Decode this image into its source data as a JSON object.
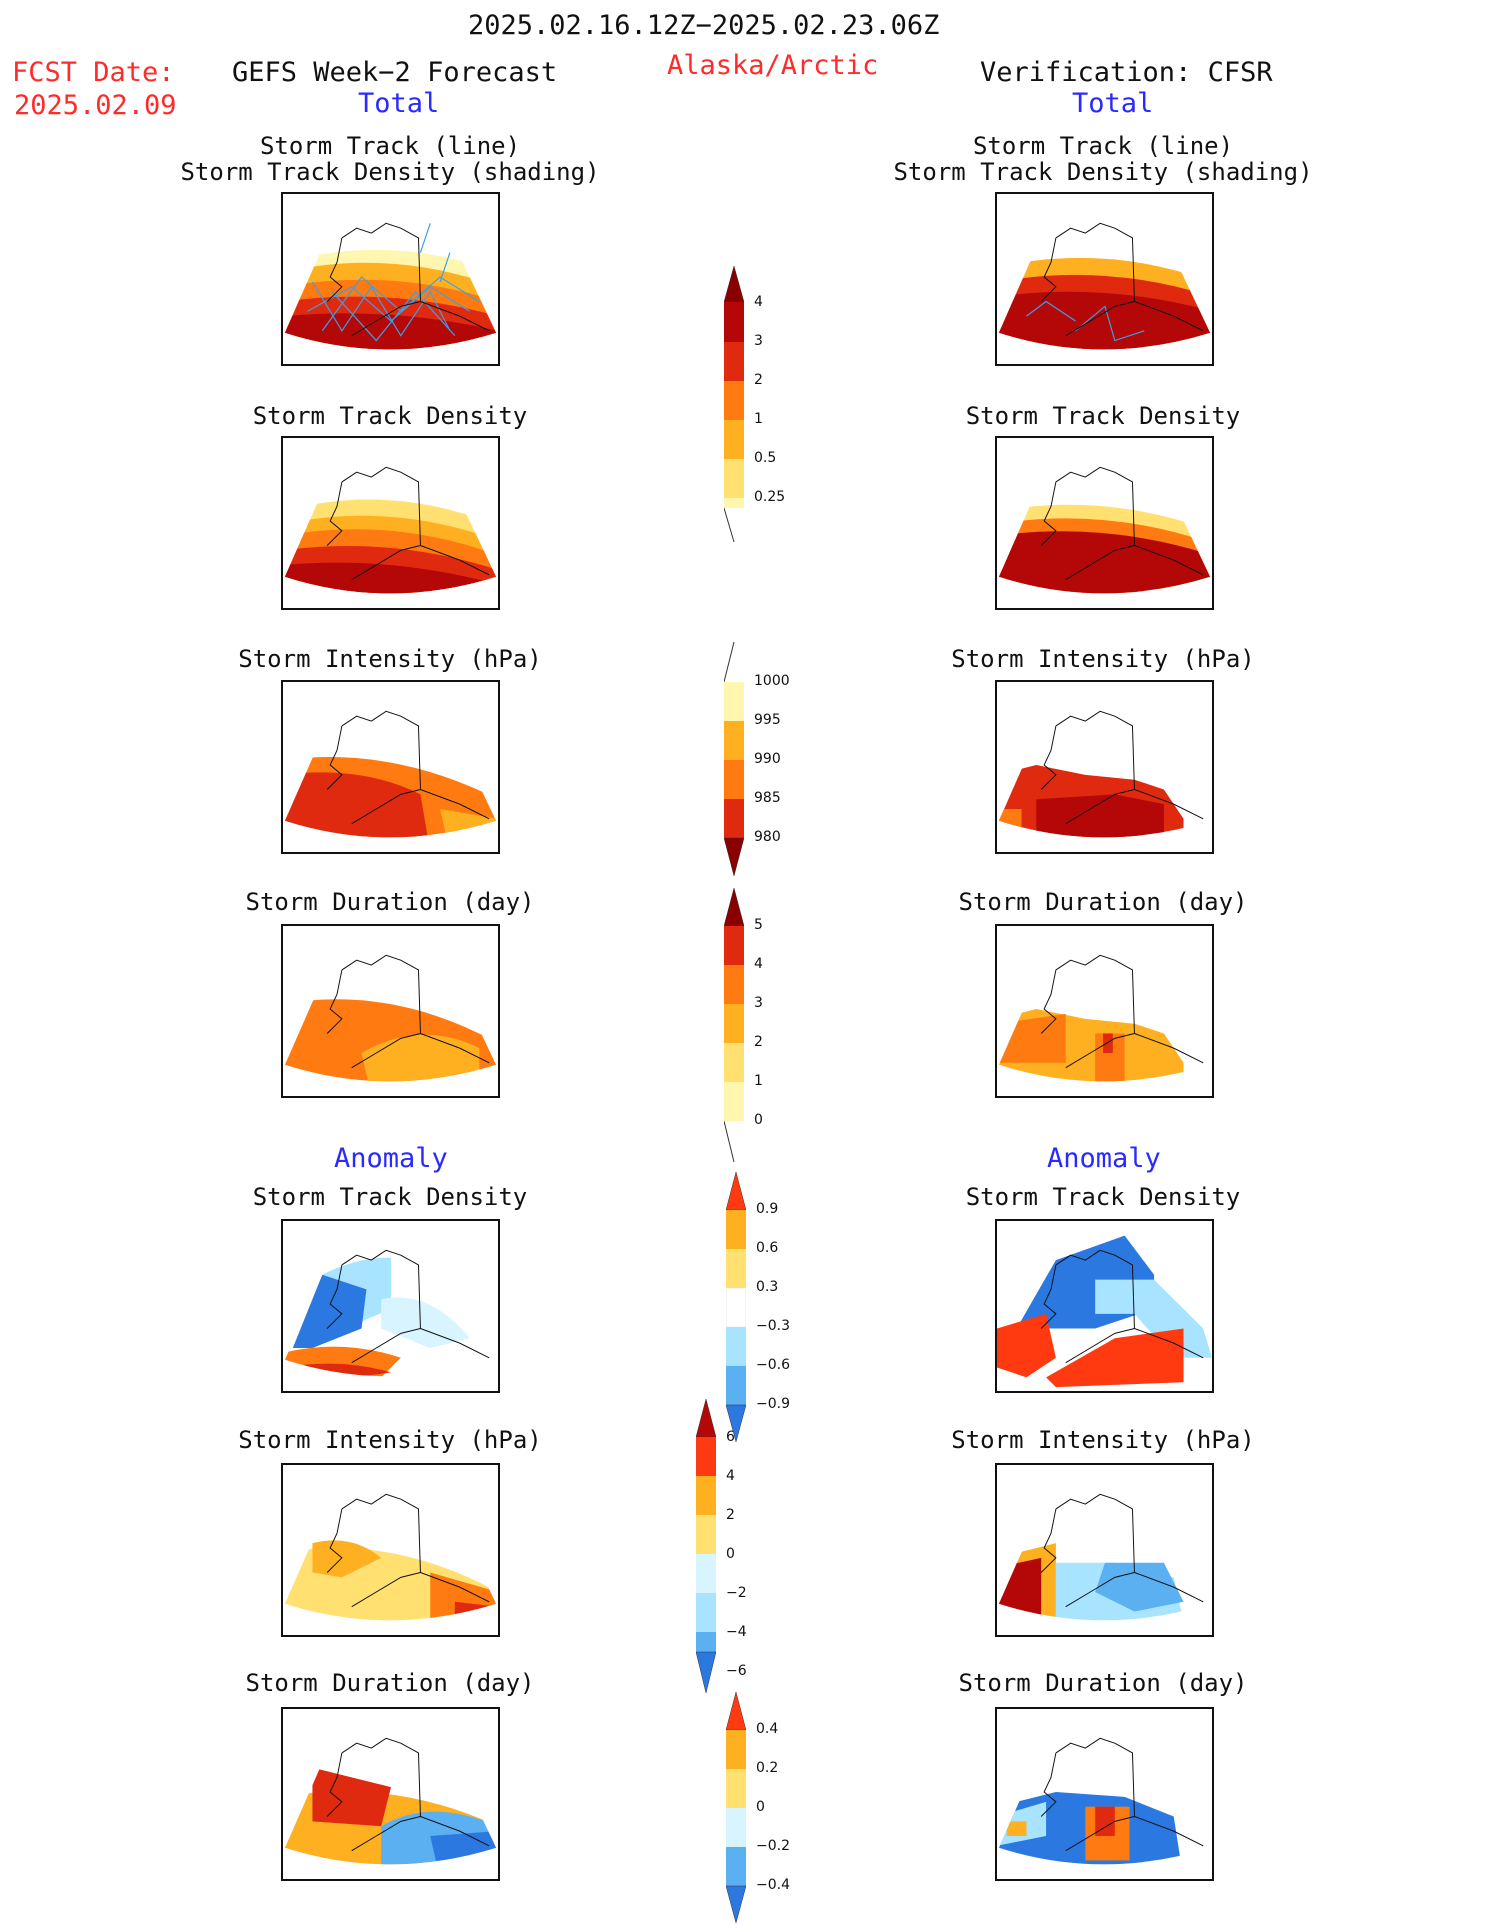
{
  "header": {
    "period": "2025.02.16.12Z−2025.02.23.06Z",
    "region": "Alaska/Arctic",
    "fcst_label": "FCST Date:",
    "fcst_date": "2025.02.09",
    "left_title": "GEFS Week−2 Forecast",
    "right_title": "Verification: CFSR",
    "left_section": "Total",
    "right_section": "Total",
    "left_anomaly": "Anomaly",
    "right_anomaly": "Anomaly"
  },
  "panels": {
    "track_line": "Storm Track (line)",
    "track_shading": "Storm Track Density (shading)",
    "density": "Storm Track Density",
    "intensity": "Storm Intensity (hPa)",
    "duration": "Storm Duration (day)"
  },
  "colorbars": {
    "density": {
      "ticks": [
        "4",
        "3",
        "2",
        "1",
        "0.5",
        "0.25"
      ]
    },
    "intensity": {
      "ticks": [
        "1000",
        "995",
        "990",
        "985",
        "980"
      ]
    },
    "duration": {
      "ticks": [
        "5",
        "4",
        "3",
        "2",
        "1",
        "0"
      ]
    },
    "anom_density": {
      "ticks": [
        "0.9",
        "0.6",
        "0.3",
        "−0.3",
        "−0.6",
        "−0.9"
      ]
    },
    "anom_intensity": {
      "ticks": [
        "6",
        "4",
        "2",
        "0",
        "−2",
        "−4",
        "−6"
      ]
    },
    "anom_duration": {
      "ticks": [
        "0.4",
        "0.2",
        "0",
        "−0.2",
        "−0.4"
      ]
    }
  },
  "colors": {
    "warm": [
      "#fff7b0",
      "#ffe070",
      "#ffb020",
      "#ff7a10",
      "#e02a10",
      "#b40808",
      "#8a0000"
    ],
    "cool": [
      "#d8f4ff",
      "#a8e4ff",
      "#5ab0f0",
      "#2a78e0",
      "#1a4ec0"
    ],
    "track_line": "#3aa0e6",
    "title_red": "#ff2b2b",
    "title_blue": "#2a2aff"
  }
}
